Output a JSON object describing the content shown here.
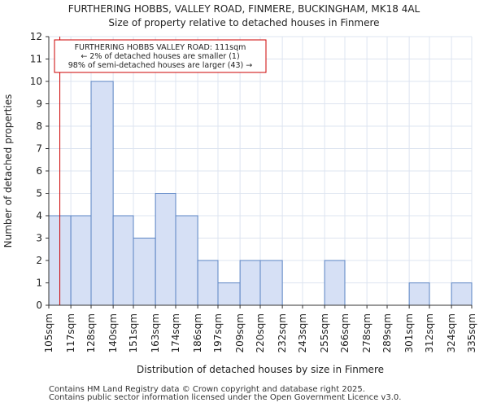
{
  "title": "FURTHERING HOBBS, VALLEY ROAD, FINMERE, BUCKINGHAM, MK18 4AL",
  "subtitle": "Size of property relative to detached houses in Finmere",
  "footer": {
    "line1": "Contains HM Land Registry data © Crown copyright and database right 2025.",
    "line2": "Contains public sector information licensed under the Open Government Licence v3.0."
  },
  "colors": {
    "bar_fill": "#d6e0f5",
    "bar_stroke": "#5b84c4",
    "marker": "#cc0000",
    "grid": "#dde4f0"
  },
  "chart_data": {
    "type": "bar",
    "title": "Size of property relative to detached houses in Finmere",
    "xlabel": "Distribution of detached houses by size in Finmere",
    "ylabel": "Number of detached properties",
    "ylim": [
      0,
      12
    ],
    "yticks": [
      0,
      1,
      2,
      3,
      4,
      5,
      6,
      7,
      8,
      9,
      10,
      11,
      12
    ],
    "bin_edges": [
      105,
      117,
      128,
      140,
      151,
      163,
      174,
      186,
      197,
      209,
      220,
      232,
      243,
      255,
      266,
      278,
      289,
      301,
      312,
      324,
      335
    ],
    "tick_labels": [
      "105sqm",
      "117sqm",
      "128sqm",
      "140sqm",
      "151sqm",
      "163sqm",
      "174sqm",
      "186sqm",
      "197sqm",
      "209sqm",
      "220sqm",
      "232sqm",
      "243sqm",
      "255sqm",
      "266sqm",
      "278sqm",
      "289sqm",
      "301sqm",
      "312sqm",
      "324sqm",
      "335sqm"
    ],
    "values": [
      4,
      4,
      10,
      4,
      3,
      5,
      4,
      2,
      1,
      2,
      2,
      0,
      0,
      2,
      0,
      0,
      0,
      1,
      0,
      1
    ],
    "marker": {
      "value": 111,
      "label_lines": [
        "FURTHERING HOBBS VALLEY ROAD: 111sqm",
        "← 2% of detached houses are smaller (1)",
        "98% of semi-detached houses are larger (43) →"
      ]
    },
    "grid": true
  }
}
